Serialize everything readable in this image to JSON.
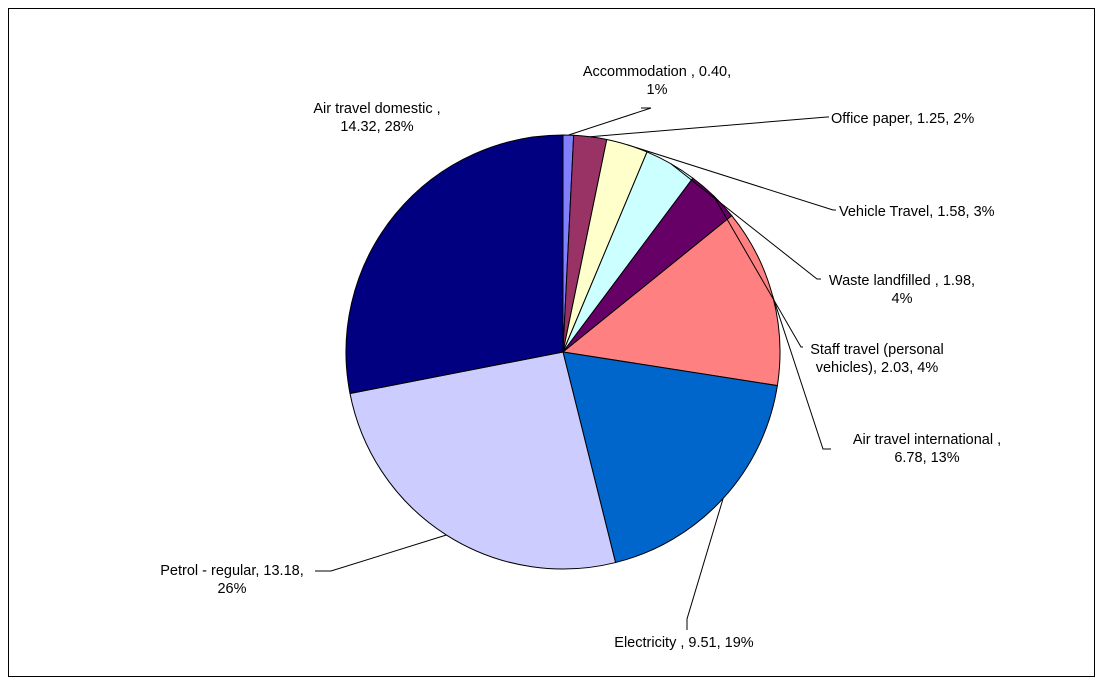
{
  "chart_data": {
    "type": "pie",
    "title": "",
    "start_angle_deg": 270,
    "direction": "clockwise",
    "slices": [
      {
        "name": "Accommodation ",
        "value": 0.4,
        "percent": "1%",
        "color": "#8080ff",
        "label_line1": "Accommodation , 0.40,",
        "label_line2": "1%"
      },
      {
        "name": "Office paper",
        "value": 1.25,
        "percent": "2%",
        "color": "#993366",
        "label_line1": "Office paper, 1.25, 2%",
        "label_line2": ""
      },
      {
        "name": "Vehicle Travel",
        "value": 1.58,
        "percent": "3%",
        "color": "#ffffcc",
        "label_line1": "Vehicle Travel, 1.58, 3%",
        "label_line2": ""
      },
      {
        "name": "Waste landfilled ",
        "value": 1.98,
        "percent": "4%",
        "color": "#ccffff",
        "label_line1": "Waste landfilled , 1.98,",
        "label_line2": "4%"
      },
      {
        "name": "Staff travel (personal vehicles)",
        "value": 2.03,
        "percent": "4%",
        "color": "#660066",
        "label_line1": "Staff travel (personal",
        "label_line2": "vehicles), 2.03, 4%"
      },
      {
        "name": "Air travel international ",
        "value": 6.78,
        "percent": "13%",
        "color": "#ff8080",
        "label_line1": "Air travel international ,",
        "label_line2": "6.78, 13%"
      },
      {
        "name": "Electricity ",
        "value": 9.51,
        "percent": "19%",
        "color": "#0066cc",
        "label_line1": "Electricity , 9.51, 19%",
        "label_line2": ""
      },
      {
        "name": "Petrol - regular",
        "value": 13.18,
        "percent": "26%",
        "color": "#ccccff",
        "label_line1": "Petrol - regular, 13.18,",
        "label_line2": "26%"
      },
      {
        "name": "Air travel domestic ",
        "value": 14.32,
        "percent": "28%",
        "color": "#000080",
        "label_line1": "Air travel domestic ,",
        "label_line2": "14.32, 28%"
      }
    ]
  }
}
